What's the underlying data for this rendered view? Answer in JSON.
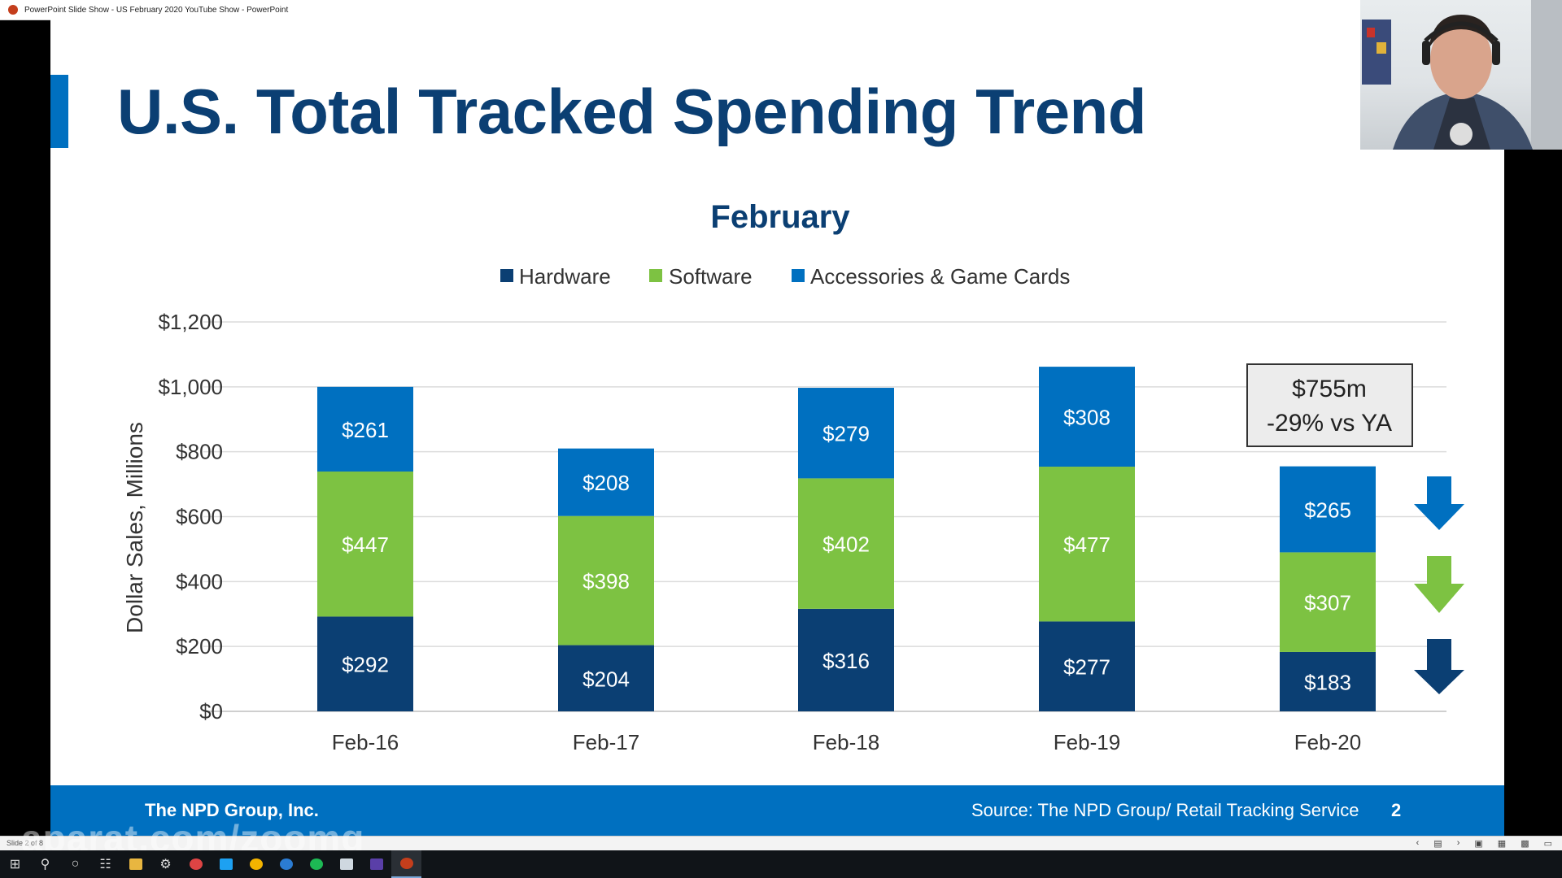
{
  "window": {
    "title": "PowerPoint Slide Show  -  US February 2020 YouTube Show  -  PowerPoint"
  },
  "slide": {
    "title": "U.S. Total Tracked Spending Trend",
    "footer_company": "The NPD Group, Inc.",
    "footer_source": "Source: The NPD Group/ Retail Tracking Service",
    "page_number": "2"
  },
  "callout": {
    "line1": "$755m",
    "line2": "-29% vs YA"
  },
  "colors": {
    "hardware": "#0b3f73",
    "software": "#7dc242",
    "accessories": "#0070c0",
    "title": "#0b3f73",
    "footer": "#0070c0"
  },
  "chart_data": {
    "type": "bar",
    "stacked": true,
    "title": "February",
    "xlabel": "",
    "ylabel": "Dollar Sales, Millions",
    "ylim": [
      0,
      1200
    ],
    "yticks": [
      0,
      200,
      400,
      600,
      800,
      1000,
      1200
    ],
    "ytick_labels": [
      "$0",
      "$200",
      "$400",
      "$600",
      "$800",
      "$1,000",
      "$1,200"
    ],
    "categories": [
      "Feb-16",
      "Feb-17",
      "Feb-18",
      "Feb-19",
      "Feb-20"
    ],
    "legend_position": "top-center",
    "series": [
      {
        "name": "Hardware",
        "values": [
          292,
          204,
          316,
          277,
          183
        ],
        "labels": [
          "$292",
          "$204",
          "$316",
          "$277",
          "$183"
        ]
      },
      {
        "name": "Software",
        "values": [
          447,
          398,
          402,
          477,
          307
        ],
        "labels": [
          "$447",
          "$398",
          "$402",
          "$477",
          "$307"
        ]
      },
      {
        "name": "Accessories & Game Cards",
        "values": [
          261,
          208,
          279,
          308,
          265
        ],
        "labels": [
          "$261",
          "$208",
          "$279",
          "$308",
          "$265"
        ]
      }
    ],
    "trend_arrows": [
      "down",
      "down",
      "down"
    ]
  },
  "statusbar": {
    "slide_indicator": "Slide 2 of 8"
  },
  "watermark": "aparat.com/zoomg",
  "taskbar": {
    "items": [
      "windows-start-icon",
      "search-icon",
      "cortana-icon",
      "task-view-icon",
      "file-explorer-icon",
      "steam-icon",
      "chrome-icon",
      "twitter-icon",
      "google-icon",
      "edge-icon",
      "spotify-icon",
      "app-icon",
      "app-icon-2",
      "powerpoint-icon"
    ]
  }
}
